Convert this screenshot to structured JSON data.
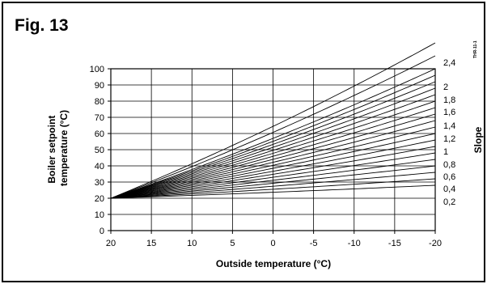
{
  "figure_label": "Fig. 13",
  "code_label": "THR-11-1",
  "chart_data": {
    "type": "line",
    "title": "",
    "xlabel": "Outside temperature (°C)",
    "ylabel_line1": "Boiler setpoint",
    "ylabel_line2": "temperature (°C)",
    "right_label": "Slope",
    "xlim": [
      20,
      -20
    ],
    "ylim": [
      0,
      100
    ],
    "x_ticks": [
      "20",
      "15",
      "10",
      "5",
      "0",
      "-5",
      "-10",
      "-15",
      "-20"
    ],
    "y_ticks": [
      "0",
      "10",
      "20",
      "30",
      "40",
      "50",
      "60",
      "70",
      "80",
      "90",
      "100"
    ],
    "grid": true,
    "base_point": {
      "x": 20,
      "y": 20
    },
    "slopes": [
      0.2,
      0.3,
      0.4,
      0.5,
      0.6,
      0.7,
      0.8,
      0.9,
      1.0,
      1.1,
      1.2,
      1.3,
      1.4,
      1.5,
      1.6,
      1.7,
      1.8,
      1.9,
      2.0,
      2.2,
      2.4
    ],
    "slope_labels": [
      {
        "text": "2,4",
        "y": 104
      },
      {
        "text": "2",
        "y": 89
      },
      {
        "text": "1,8",
        "y": 81
      },
      {
        "text": "1,6",
        "y": 73.5
      },
      {
        "text": "1,4",
        "y": 65
      },
      {
        "text": "1,2",
        "y": 57
      },
      {
        "text": "1",
        "y": 49
      },
      {
        "text": "0,8",
        "y": 41
      },
      {
        "text": "0,6",
        "y": 33.5
      },
      {
        "text": "0,4",
        "y": 26
      },
      {
        "text": "0,2",
        "y": 18
      }
    ],
    "colors": {
      "line": "#000000",
      "grid": "#000000"
    }
  }
}
